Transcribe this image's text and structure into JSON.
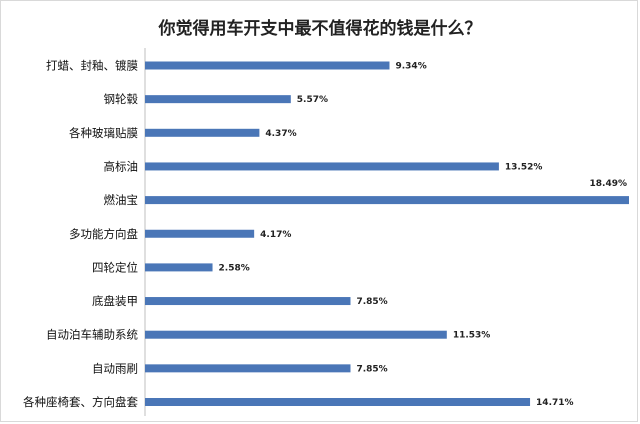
{
  "chart_data": {
    "type": "bar",
    "orientation": "horizontal",
    "title": "你觉得用车开支中最不值得花的钱是什么？",
    "categories": [
      "打蜡、封釉、镀膜",
      "钢轮毂",
      "各种玻璃贴膜",
      "高标油",
      "燃油宝",
      "多功能方向盘",
      "四轮定位",
      "底盘装甲",
      "自动泊车辅助系统",
      "自动雨刷",
      "各种座椅套、方向盘套"
    ],
    "values": [
      9.34,
      5.57,
      4.37,
      13.52,
      18.49,
      4.17,
      2.58,
      7.85,
      11.53,
      7.85,
      14.71
    ],
    "value_labels": [
      "9.34%",
      "5.57%",
      "4.37%",
      "13.52%",
      "18.49%",
      "4.17%",
      "2.58%",
      "7.85%",
      "11.53%",
      "7.85%",
      "14.71%"
    ],
    "xlim": [
      0,
      18.49
    ],
    "grid": false,
    "legend": "none",
    "bar_color": "#4a76b7"
  }
}
